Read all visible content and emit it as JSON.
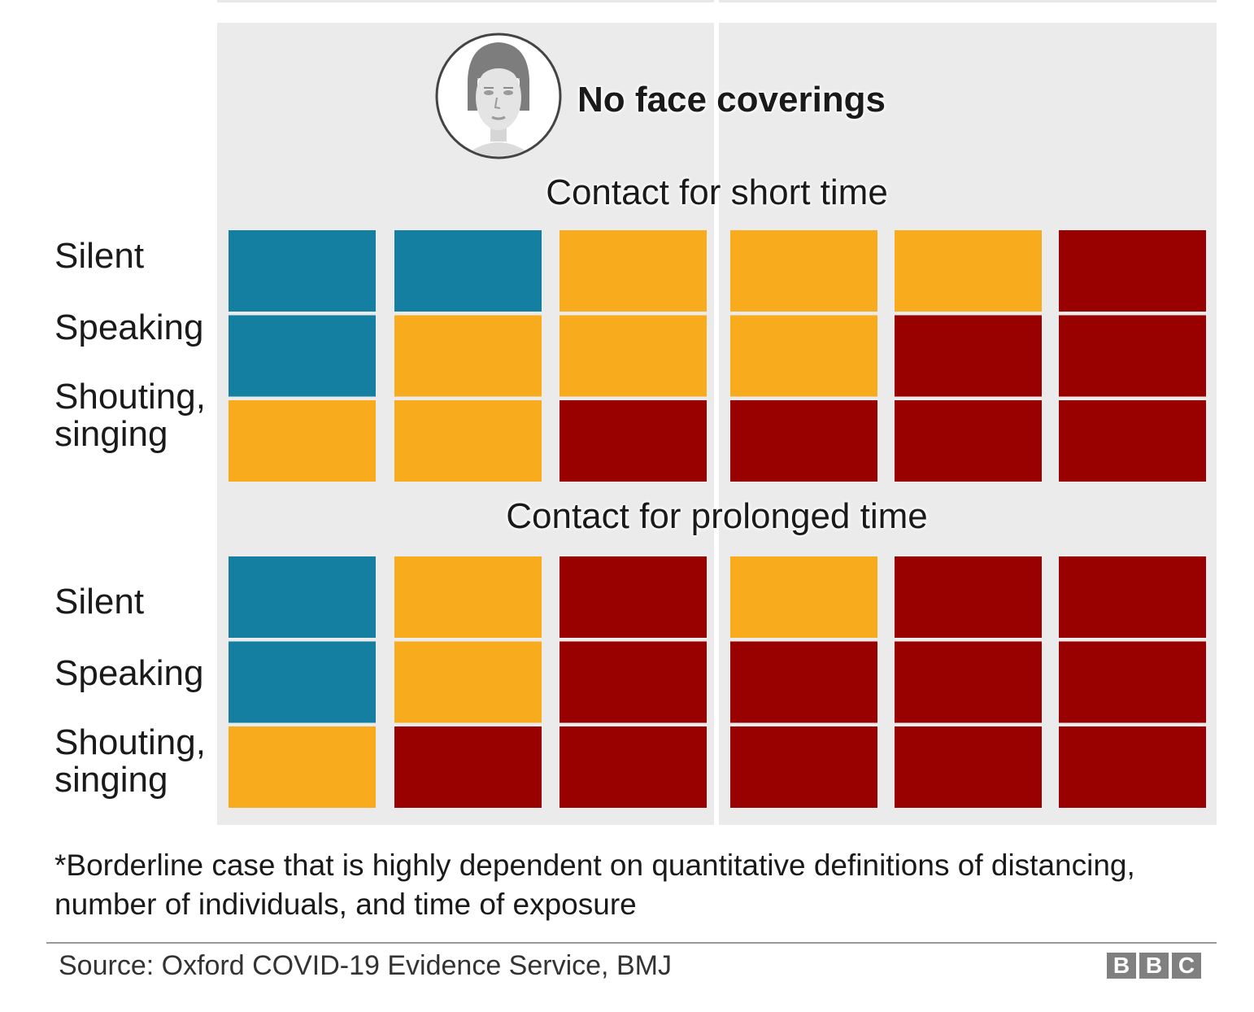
{
  "heading": "No face coverings",
  "colors": {
    "low": "#157fa1",
    "medium": "#f9ab1e",
    "high": "#990000",
    "panel": "#ebebeb"
  },
  "chart_data": {
    "type": "heatmap",
    "title": "No face coverings",
    "value_encoding": {
      "low": "#157fa1",
      "medium": "#f9ab1e",
      "high": "#990000"
    },
    "columns": 6,
    "panels": [
      {
        "title": "Contact for short time",
        "rows": [
          "Silent",
          "Speaking",
          "Shouting, singing"
        ],
        "values": [
          [
            "low",
            "low",
            "medium",
            "medium",
            "medium",
            "high"
          ],
          [
            "low",
            "medium",
            "medium",
            "medium",
            "high",
            "high"
          ],
          [
            "medium",
            "medium",
            "high",
            "high",
            "high",
            "high"
          ]
        ]
      },
      {
        "title": "Contact for prolonged time",
        "rows": [
          "Silent",
          "Speaking",
          "Shouting, singing"
        ],
        "values": [
          [
            "low",
            "medium",
            "high",
            "medium",
            "high",
            "high"
          ],
          [
            "low",
            "medium",
            "high",
            "high",
            "high",
            "high"
          ],
          [
            "medium",
            "high",
            "high",
            "high",
            "high",
            "high"
          ]
        ]
      }
    ]
  },
  "labels": {
    "short": {
      "title": "Contact for short time",
      "silent": "Silent",
      "speaking": "Speaking",
      "shouting1": "Shouting,",
      "shouting2": "singing"
    },
    "prolonged": {
      "title": "Contact for prolonged time",
      "silent": "Silent",
      "speaking": "Speaking",
      "shouting1": "Shouting,",
      "shouting2": "singing"
    }
  },
  "footnote": "*Borderline case that is highly dependent on quantitative definitions of distancing, number of individuals, and time of exposure",
  "source": "Source: Oxford COVID-19 Evidence Service, BMJ",
  "logo": [
    "B",
    "B",
    "C"
  ]
}
